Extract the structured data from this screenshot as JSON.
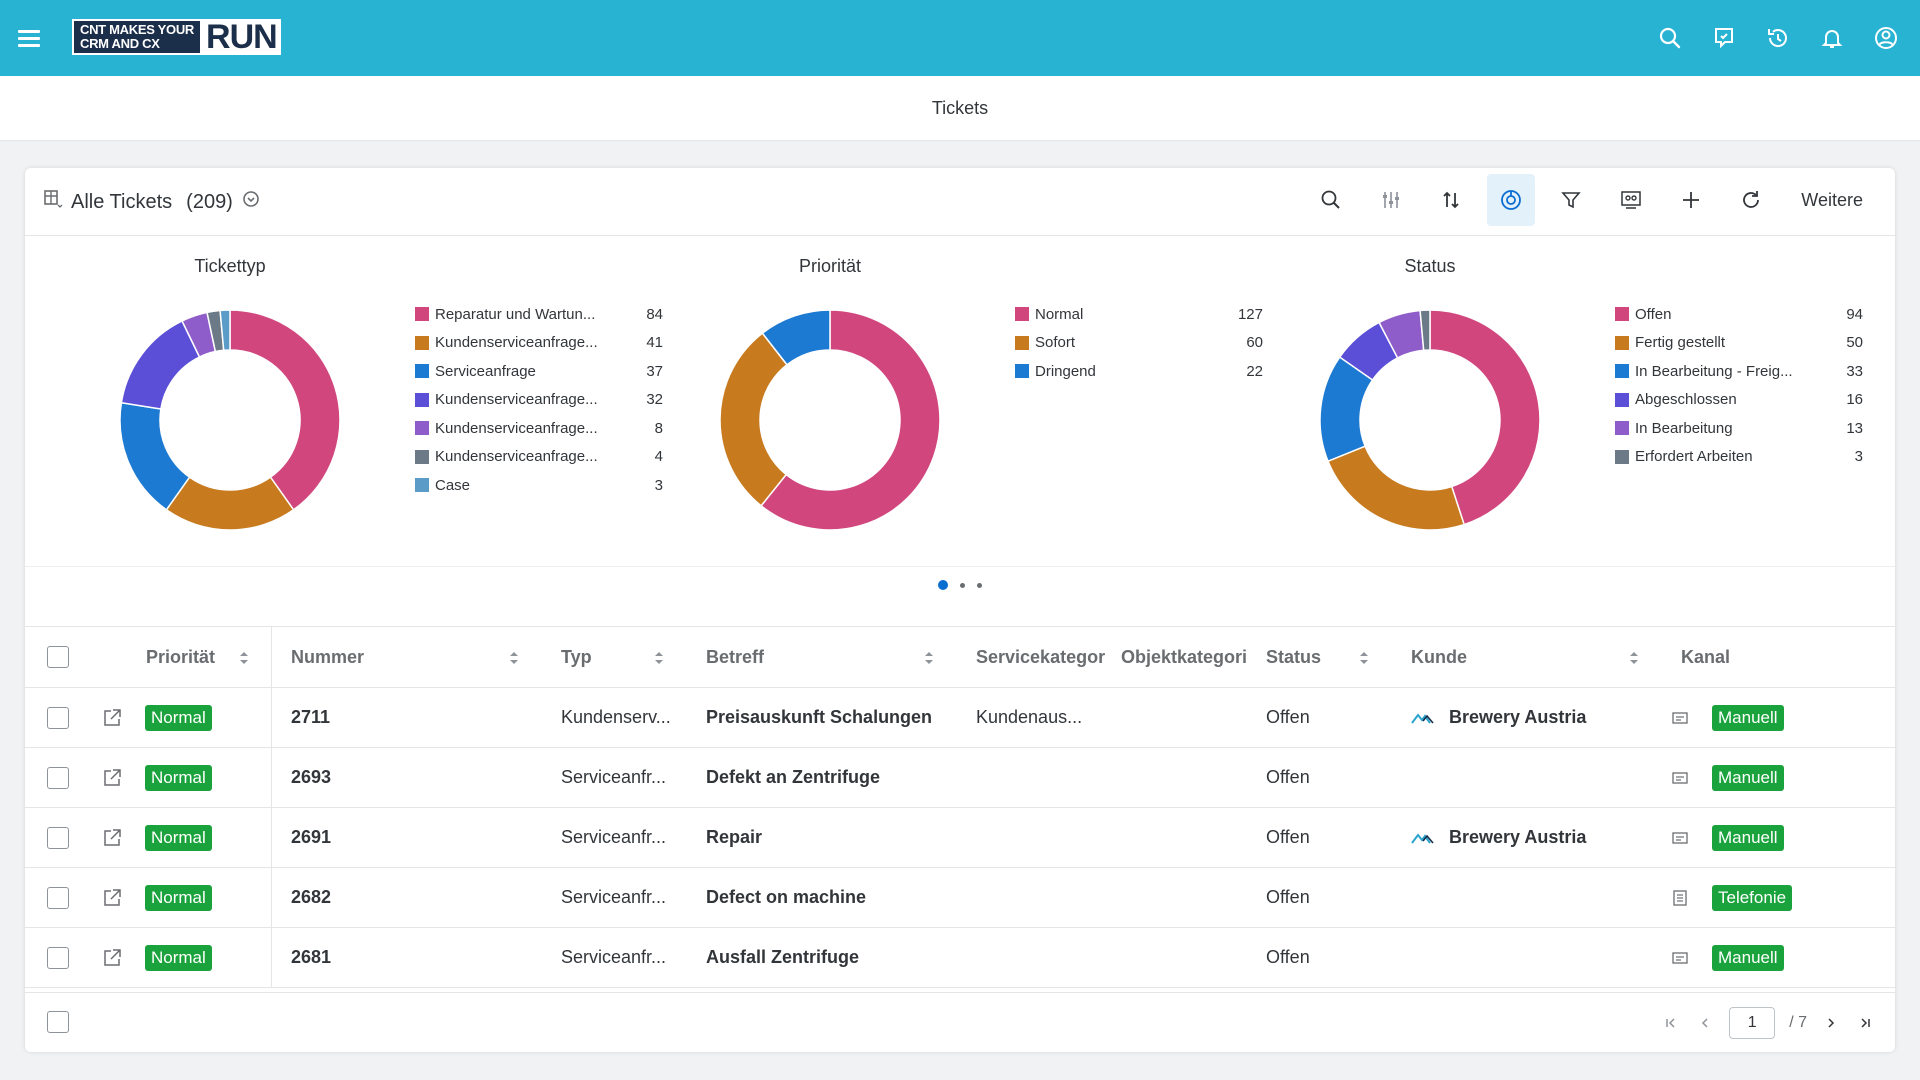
{
  "shell": {
    "logo_small_line1": "CNT MAKES YOUR",
    "logo_small_line2": "CRM AND CX",
    "logo_big": "RUN",
    "icons": [
      "search-icon",
      "feedback-icon",
      "history-icon",
      "bell-icon",
      "user-icon"
    ]
  },
  "page": {
    "title": "Tickets"
  },
  "card": {
    "view_title": "Alle Tickets",
    "view_count": "(209)",
    "more_label": "Weitere",
    "toolbar_icons": [
      "search-icon",
      "settings-sliders-icon",
      "sort-icon",
      "chart-view-icon",
      "filter-icon",
      "group-icon",
      "add-icon",
      "refresh-icon"
    ]
  },
  "chart_data": [
    {
      "type": "pie",
      "title": "Tickettyp",
      "categories": [
        "Reparatur und Wartun...",
        "Kundenserviceanfrage...",
        "Serviceanfrage",
        "Kundenserviceanfrage...",
        "Kundenserviceanfrage...",
        "Kundenserviceanfrage...",
        "Case"
      ],
      "values": [
        84,
        41,
        37,
        32,
        8,
        4,
        3
      ],
      "colors": [
        "#d0467d",
        "#c87b1e",
        "#1d7ad3",
        "#5a4fd6",
        "#8e5dc9",
        "#6b7a86",
        "#5b9bc8"
      ],
      "legend": "right"
    },
    {
      "type": "pie",
      "title": "Priorität",
      "categories": [
        "Normal",
        "Sofort",
        "Dringend"
      ],
      "values": [
        127,
        60,
        22
      ],
      "colors": [
        "#d0467d",
        "#c87b1e",
        "#1d7ad3"
      ],
      "legend": "right"
    },
    {
      "type": "pie",
      "title": "Status",
      "categories": [
        "Offen",
        "Fertig gestellt",
        "In Bearbeitung - Freig...",
        "Abgeschlossen",
        "In Bearbeitung",
        "Erfordert Arbeiten"
      ],
      "values": [
        94,
        50,
        33,
        16,
        13,
        3
      ],
      "colors": [
        "#d0467d",
        "#c87b1e",
        "#1d7ad3",
        "#5a4fd6",
        "#8e5dc9",
        "#6b7a86"
      ],
      "legend": "right"
    }
  ],
  "table": {
    "columns": [
      "Priorität",
      "Nummer",
      "Typ",
      "Betreff",
      "Servicekategor",
      "Objektkategori",
      "Status",
      "Kunde",
      "Kanal"
    ],
    "rows": [
      {
        "prioritaet": "Normal",
        "nummer": "2711",
        "typ": "Kundenserv...",
        "betreff": "Preisauskunft Schalungen",
        "servicekategorie": "Kundenaus...",
        "status": "Offen",
        "kunde": "Brewery Austria",
        "kanal": "Manuell",
        "kanal_icon": "ticket-icon"
      },
      {
        "prioritaet": "Normal",
        "nummer": "2693",
        "typ": "Serviceanfr...",
        "betreff": "Defekt an Zentrifuge",
        "servicekategorie": "",
        "status": "Offen",
        "kunde": "",
        "kanal": "Manuell",
        "kanal_icon": "ticket-icon"
      },
      {
        "prioritaet": "Normal",
        "nummer": "2691",
        "typ": "Serviceanfr...",
        "betreff": "Repair",
        "servicekategorie": "",
        "status": "Offen",
        "kunde": "Brewery Austria",
        "kanal": "Manuell",
        "kanal_icon": "ticket-icon"
      },
      {
        "prioritaet": "Normal",
        "nummer": "2682",
        "typ": "Serviceanfr...",
        "betreff": "Defect on machine",
        "servicekategorie": "",
        "status": "Offen",
        "kunde": "",
        "kanal": "Telefonie",
        "kanal_icon": "phone-list-icon"
      },
      {
        "prioritaet": "Normal",
        "nummer": "2681",
        "typ": "Serviceanfr...",
        "betreff": "Ausfall Zentrifuge",
        "servicekategorie": "",
        "status": "Offen",
        "kunde": "",
        "kanal": "Manuell",
        "kanal_icon": "ticket-icon"
      }
    ]
  },
  "pagination": {
    "current_page": "1",
    "total_label": "/ 7"
  },
  "colors": {
    "shell": "#29b3d2",
    "badge_green": "#1aa33c",
    "accent": "#0a6ed1"
  }
}
